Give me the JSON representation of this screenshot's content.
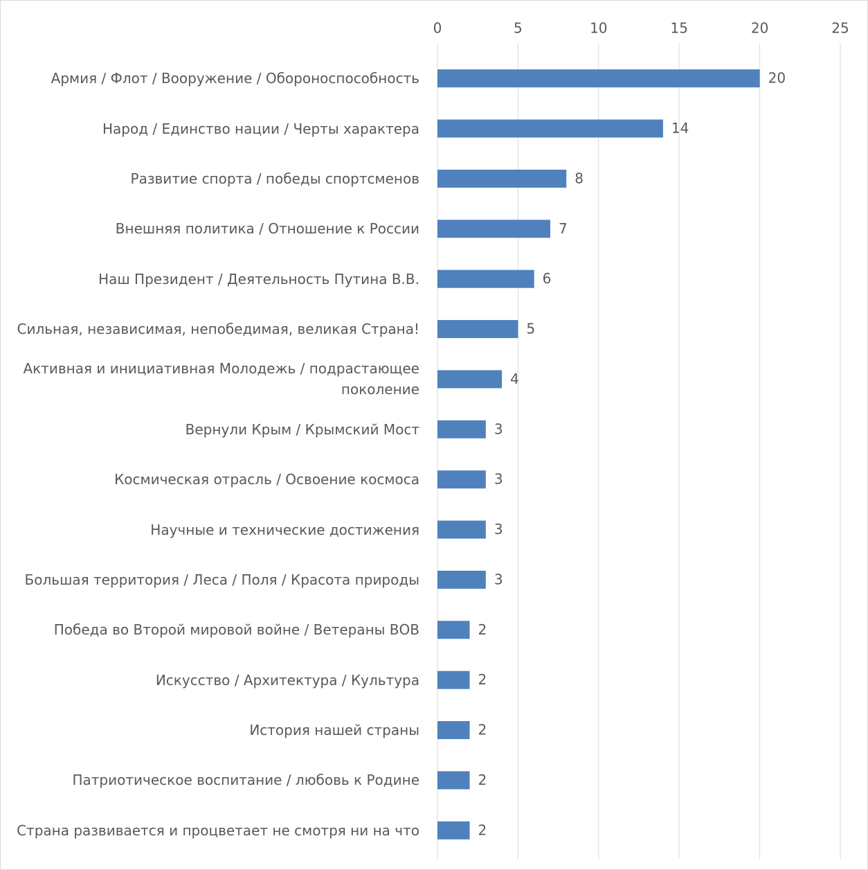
{
  "chart_data": {
    "type": "barh",
    "categories": [
      "Армия / Флот / Вооружение / Обороноспособность",
      "Народ / Единство нации / Черты характера",
      "Развитие спорта / победы спортсменов",
      "Внешняя политика / Отношение к России",
      "Наш Президент / Деятельность Путина В.В.",
      "Сильная, независимая, непобедимая, великая Страна!",
      "Активная и инициативная Молодежь / подрастающее поколение",
      "Вернули Крым / Крымский Мост",
      "Космическая отрасль / Освоение космоса",
      "Научные и технические достижения",
      "Большая территория / Леса / Поля / Красота природы",
      "Победа во Второй мировой войне / Ветераны ВОВ",
      "Искусство / Архитектура / Культура",
      "История нашей страны",
      "Патриотическое воспитание / любовь к Родине",
      "Страна развивается и процветает не смотря ни на что"
    ],
    "values": [
      20,
      14,
      8,
      7,
      6,
      5,
      4,
      3,
      3,
      3,
      3,
      2,
      2,
      2,
      2,
      2
    ],
    "color": "#4f81bd",
    "xlim": [
      0,
      25
    ],
    "xticks": [
      0,
      5,
      10,
      15,
      20,
      25
    ],
    "grid": true
  }
}
